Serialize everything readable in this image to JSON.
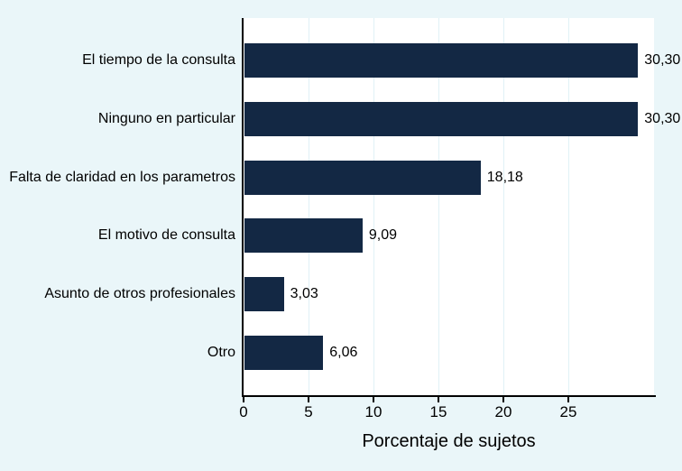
{
  "chart_data": {
    "type": "bar",
    "orientation": "horizontal",
    "title": "",
    "xlabel": "Porcentaje de sujetos",
    "ylabel": "",
    "categories": [
      "El tiempo de la consulta",
      "Ninguno en particular",
      "Falta de claridad en los parametros",
      "El motivo de consulta",
      "Asunto de otros profesionales",
      "Otro"
    ],
    "values": [
      30.3,
      30.3,
      18.18,
      9.09,
      3.03,
      6.06
    ],
    "value_labels": [
      "30,30",
      "30,30",
      "18,18",
      "9,09",
      "3,03",
      "6,06"
    ],
    "xticks": [
      0,
      5,
      10,
      15,
      20,
      25
    ],
    "xtick_labels": [
      "0",
      "5",
      "10",
      "15",
      "20",
      "25"
    ],
    "xlim": [
      0,
      31.6
    ],
    "grid": "vertical",
    "legend": "none",
    "colors": {
      "bar": "#132844",
      "background": "#eaf6f9",
      "plot_background": "#ffffff",
      "gridline": "#e0f1f6",
      "axis": "#000000",
      "text": "#000000"
    }
  }
}
